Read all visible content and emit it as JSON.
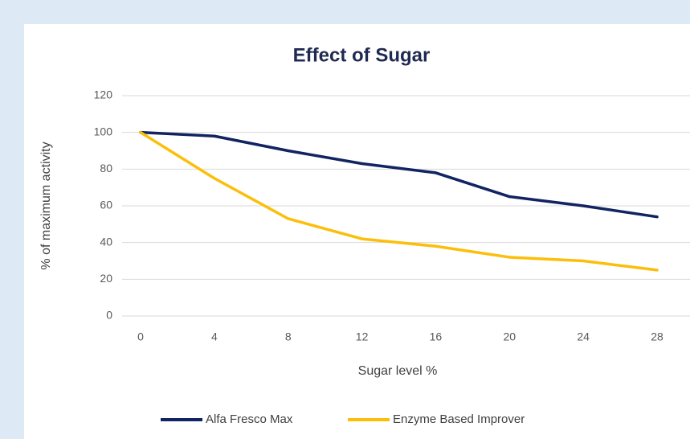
{
  "chart_data": {
    "type": "line",
    "title": "Effect of Sugar",
    "x_label": "Sugar level %",
    "y_label": "% of maximum activity",
    "x": [
      0,
      4,
      8,
      12,
      16,
      20,
      24,
      28
    ],
    "series": [
      {
        "name": "Alfa Fresco Max",
        "color": "#112461",
        "values": [
          100,
          98,
          90,
          83,
          78,
          65,
          60,
          54
        ]
      },
      {
        "name": "Enzyme Based Improver",
        "color": "#fbbf0b",
        "values": [
          100,
          75,
          53,
          42,
          38,
          32,
          30,
          25
        ]
      }
    ],
    "xlim": [
      0,
      28
    ],
    "xticks": [
      0,
      4,
      8,
      12,
      16,
      20,
      24,
      28
    ],
    "ylim": [
      0,
      120
    ],
    "yticks": [
      0,
      20,
      40,
      60,
      80,
      100,
      120
    ],
    "grid": true,
    "legend": "bottom"
  }
}
